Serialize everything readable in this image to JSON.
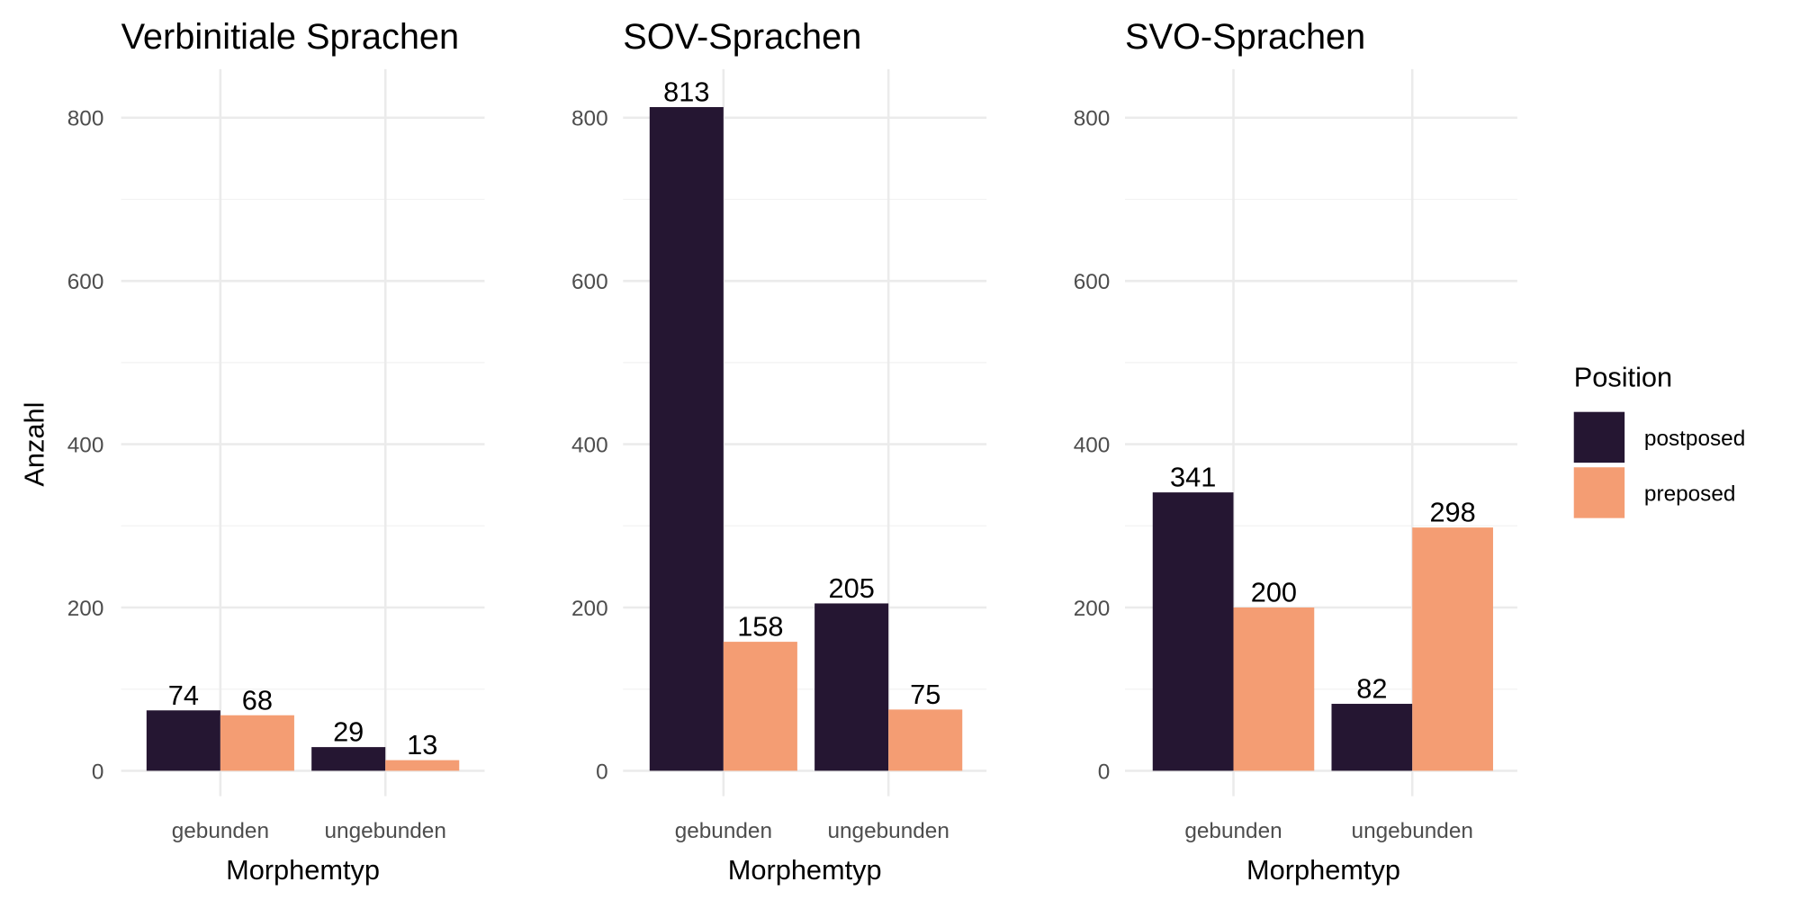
{
  "chart_data": [
    {
      "type": "bar",
      "title": "Verbinitiale Sprachen",
      "xlabel": "Morphemtyp",
      "ylabel": "Anzahl",
      "categories": [
        "gebunden",
        "ungebunden"
      ],
      "series": [
        {
          "name": "postposed",
          "values": [
            74,
            29
          ]
        },
        {
          "name": "preposed",
          "values": [
            68,
            13
          ]
        }
      ],
      "ylim": [
        0,
        850
      ],
      "yticks": [
        0,
        200,
        400,
        600,
        800
      ]
    },
    {
      "type": "bar",
      "title": "SOV-Sprachen",
      "xlabel": "Morphemtyp",
      "ylabel": "",
      "categories": [
        "gebunden",
        "ungebunden"
      ],
      "series": [
        {
          "name": "postposed",
          "values": [
            813,
            205
          ]
        },
        {
          "name": "preposed",
          "values": [
            158,
            75
          ]
        }
      ],
      "ylim": [
        0,
        850
      ],
      "yticks": [
        0,
        200,
        400,
        600,
        800
      ]
    },
    {
      "type": "bar",
      "title": "SVO-Sprachen",
      "xlabel": "Morphemtyp",
      "ylabel": "",
      "categories": [
        "gebunden",
        "ungebunden"
      ],
      "series": [
        {
          "name": "postposed",
          "values": [
            341,
            82
          ]
        },
        {
          "name": "preposed",
          "values": [
            200,
            298
          ]
        }
      ],
      "ylim": [
        0,
        850
      ],
      "yticks": [
        0,
        200,
        400,
        600,
        800
      ]
    }
  ],
  "legend": {
    "title": "Position",
    "placement": "right",
    "items": [
      {
        "label": "postposed",
        "color": "#251632"
      },
      {
        "label": "preposed",
        "color": "#f49d73"
      }
    ]
  },
  "grid": true
}
